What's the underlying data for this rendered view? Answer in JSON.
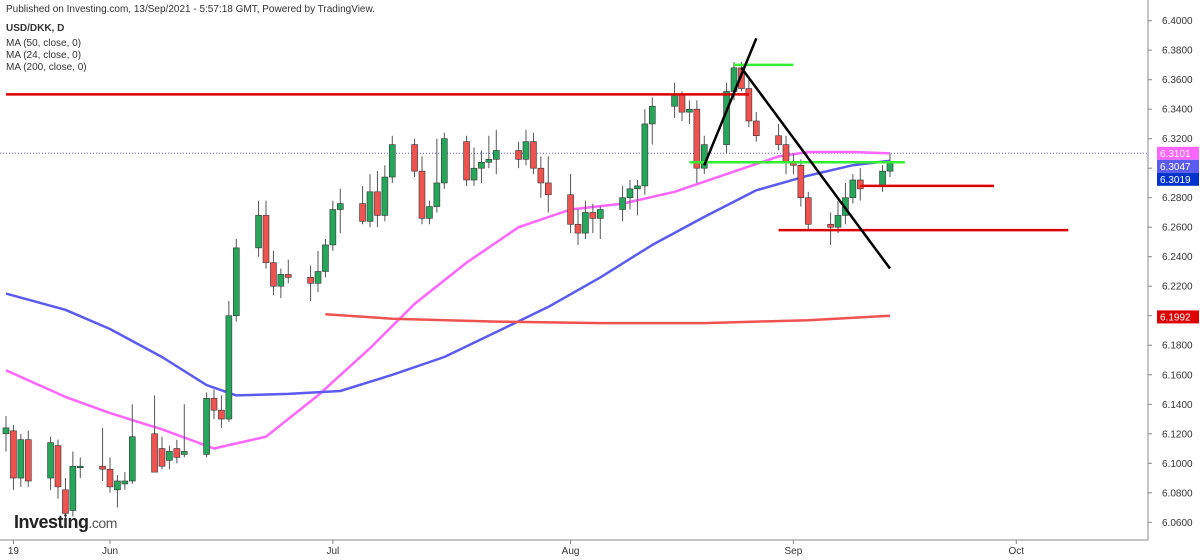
{
  "header": {
    "published": "Published on Investing.com, 13/Sep/2021 - 5:57:18 GMT, Powered by TradingView.",
    "symbol": "USD/DKK, D",
    "ma_labels": [
      "MA (50, close, 0)",
      "MA (24, close, 0)",
      "MA (200, close, 0)"
    ]
  },
  "logo": {
    "main": "Investing",
    "suffix": ".com"
  },
  "colors": {
    "up": "#26a65b",
    "down": "#ef5350",
    "ma24": "#ff66ff",
    "ma50": "#5b5bef",
    "ma200": "#ef5350",
    "resistance": "#dd0000",
    "support_green": "#33ee33",
    "trendline": "#000000",
    "last_price": "#5b5bef"
  },
  "chart_data": {
    "type": "candlestick",
    "xlabel": "",
    "ylabel": "",
    "ylim": [
      6.048,
      6.414
    ],
    "y_ticks": [
      "6.0600",
      "6.0800",
      "6.1000",
      "6.1200",
      "6.1400",
      "6.1600",
      "6.1800",
      "6.2000",
      "6.2200",
      "6.2400",
      "6.2600",
      "6.2800",
      "6.3000",
      "6.3200",
      "6.3400",
      "6.3600",
      "6.3800",
      "6.4000"
    ],
    "x_ticks": [
      {
        "label": "19",
        "date": "2021-05-19"
      },
      {
        "label": "Jun",
        "date": "2021-06-01"
      },
      {
        "label": "Jul",
        "date": "2021-07-01"
      },
      {
        "label": "Aug",
        "date": "2021-08-02"
      },
      {
        "label": "Sep",
        "date": "2021-09-01"
      },
      {
        "label": "Oct",
        "date": "2021-10-01"
      }
    ],
    "x_range": [
      "2021-05-18",
      "2021-10-12"
    ],
    "candles": [
      {
        "date": "2021-05-18",
        "o": 6.12,
        "h": 6.132,
        "l": 6.108,
        "c": 6.124
      },
      {
        "date": "2021-05-19",
        "o": 6.122,
        "h": 6.126,
        "l": 6.082,
        "c": 6.09
      },
      {
        "date": "2021-05-20",
        "o": 6.09,
        "h": 6.12,
        "l": 6.084,
        "c": 6.116
      },
      {
        "date": "2021-05-21",
        "o": 6.116,
        "h": 6.122,
        "l": 6.084,
        "c": 6.088
      },
      {
        "date": "2021-05-24",
        "o": 6.09,
        "h": 6.118,
        "l": 6.082,
        "c": 6.114
      },
      {
        "date": "2021-05-25",
        "o": 6.112,
        "h": 6.116,
        "l": 6.076,
        "c": 6.084
      },
      {
        "date": "2021-05-26",
        "o": 6.082,
        "h": 6.09,
        "l": 6.062,
        "c": 6.066
      },
      {
        "date": "2021-05-27",
        "o": 6.068,
        "h": 6.108,
        "l": 6.064,
        "c": 6.098
      },
      {
        "date": "2021-05-28",
        "o": 6.098,
        "h": 6.104,
        "l": 6.09,
        "c": 6.098
      },
      {
        "date": "2021-05-31",
        "o": 6.098,
        "h": 6.124,
        "l": 6.088,
        "c": 6.096
      },
      {
        "date": "2021-06-01",
        "o": 6.096,
        "h": 6.104,
        "l": 6.08,
        "c": 6.084
      },
      {
        "date": "2021-06-02",
        "o": 6.082,
        "h": 6.092,
        "l": 6.07,
        "c": 6.088
      },
      {
        "date": "2021-06-03",
        "o": 6.086,
        "h": 6.094,
        "l": 6.082,
        "c": 6.088
      },
      {
        "date": "2021-06-04",
        "o": 6.088,
        "h": 6.14,
        "l": 6.086,
        "c": 6.118
      },
      {
        "date": "2021-06-07",
        "o": 6.12,
        "h": 6.146,
        "l": 6.096,
        "c": 6.094
      },
      {
        "date": "2021-06-08",
        "o": 6.11,
        "h": 6.118,
        "l": 6.096,
        "c": 6.098
      },
      {
        "date": "2021-06-09",
        "o": 6.102,
        "h": 6.112,
        "l": 6.096,
        "c": 6.108
      },
      {
        "date": "2021-06-10",
        "o": 6.11,
        "h": 6.116,
        "l": 6.1,
        "c": 6.104
      },
      {
        "date": "2021-06-11",
        "o": 6.106,
        "h": 6.14,
        "l": 6.104,
        "c": 6.108
      },
      {
        "date": "2021-06-14",
        "o": 6.106,
        "h": 6.148,
        "l": 6.104,
        "c": 6.144
      },
      {
        "date": "2021-06-15",
        "o": 6.144,
        "h": 6.15,
        "l": 6.13,
        "c": 6.136
      },
      {
        "date": "2021-06-16",
        "o": 6.136,
        "h": 6.146,
        "l": 6.124,
        "c": 6.13
      },
      {
        "date": "2021-06-17",
        "o": 6.13,
        "h": 6.21,
        "l": 6.128,
        "c": 6.2
      },
      {
        "date": "2021-06-18",
        "o": 6.2,
        "h": 6.252,
        "l": 6.196,
        "c": 6.246
      },
      {
        "date": "2021-06-21",
        "o": 6.246,
        "h": 6.278,
        "l": 6.24,
        "c": 6.268
      },
      {
        "date": "2021-06-22",
        "o": 6.268,
        "h": 6.278,
        "l": 6.232,
        "c": 6.236
      },
      {
        "date": "2021-06-23",
        "o": 6.236,
        "h": 6.244,
        "l": 6.214,
        "c": 6.22
      },
      {
        "date": "2021-06-24",
        "o": 6.22,
        "h": 6.232,
        "l": 6.212,
        "c": 6.228
      },
      {
        "date": "2021-06-25",
        "o": 6.228,
        "h": 6.238,
        "l": 6.222,
        "c": 6.226
      },
      {
        "date": "2021-06-28",
        "o": 6.226,
        "h": 6.234,
        "l": 6.21,
        "c": 6.222
      },
      {
        "date": "2021-06-29",
        "o": 6.222,
        "h": 6.244,
        "l": 6.216,
        "c": 6.23
      },
      {
        "date": "2021-06-30",
        "o": 6.23,
        "h": 6.252,
        "l": 6.226,
        "c": 6.248
      },
      {
        "date": "2021-07-01",
        "o": 6.248,
        "h": 6.278,
        "l": 6.244,
        "c": 6.272
      },
      {
        "date": "2021-07-02",
        "o": 6.272,
        "h": 6.286,
        "l": 6.256,
        "c": 6.276
      },
      {
        "date": "2021-07-05",
        "o": 6.276,
        "h": 6.288,
        "l": 6.262,
        "c": 6.264
      },
      {
        "date": "2021-07-06",
        "o": 6.264,
        "h": 6.296,
        "l": 6.26,
        "c": 6.284
      },
      {
        "date": "2021-07-07",
        "o": 6.284,
        "h": 6.298,
        "l": 6.26,
        "c": 6.268
      },
      {
        "date": "2021-07-08",
        "o": 6.268,
        "h": 6.302,
        "l": 6.264,
        "c": 6.294
      },
      {
        "date": "2021-07-09",
        "o": 6.294,
        "h": 6.322,
        "l": 6.29,
        "c": 6.316
      },
      {
        "date": "2021-07-12",
        "o": 6.316,
        "h": 6.32,
        "l": 6.294,
        "c": 6.298
      },
      {
        "date": "2021-07-13",
        "o": 6.298,
        "h": 6.308,
        "l": 6.262,
        "c": 6.266
      },
      {
        "date": "2021-07-14",
        "o": 6.266,
        "h": 6.278,
        "l": 6.262,
        "c": 6.274
      },
      {
        "date": "2021-07-15",
        "o": 6.274,
        "h": 6.32,
        "l": 6.27,
        "c": 6.29
      },
      {
        "date": "2021-07-16",
        "o": 6.29,
        "h": 6.324,
        "l": 6.286,
        "c": 6.32
      },
      {
        "date": "2021-07-19",
        "o": 6.318,
        "h": 6.322,
        "l": 6.288,
        "c": 6.292
      },
      {
        "date": "2021-07-20",
        "o": 6.292,
        "h": 6.314,
        "l": 6.288,
        "c": 6.3
      },
      {
        "date": "2021-07-21",
        "o": 6.3,
        "h": 6.312,
        "l": 6.29,
        "c": 6.304
      },
      {
        "date": "2021-07-22",
        "o": 6.304,
        "h": 6.322,
        "l": 6.3,
        "c": 6.306
      },
      {
        "date": "2021-07-23",
        "o": 6.306,
        "h": 6.326,
        "l": 6.296,
        "c": 6.312
      },
      {
        "date": "2021-07-26",
        "o": 6.312,
        "h": 6.318,
        "l": 6.3,
        "c": 6.306
      },
      {
        "date": "2021-07-27",
        "o": 6.306,
        "h": 6.326,
        "l": 6.302,
        "c": 6.318
      },
      {
        "date": "2021-07-28",
        "o": 6.318,
        "h": 6.324,
        "l": 6.296,
        "c": 6.3
      },
      {
        "date": "2021-07-29",
        "o": 6.3,
        "h": 6.308,
        "l": 6.28,
        "c": 6.29
      },
      {
        "date": "2021-07-30",
        "o": 6.29,
        "h": 6.308,
        "l": 6.27,
        "c": 6.282
      },
      {
        "date": "2021-08-02",
        "o": 6.282,
        "h": 6.296,
        "l": 6.256,
        "c": 6.262
      },
      {
        "date": "2021-08-03",
        "o": 6.262,
        "h": 6.272,
        "l": 6.248,
        "c": 6.256
      },
      {
        "date": "2021-08-04",
        "o": 6.256,
        "h": 6.278,
        "l": 6.252,
        "c": 6.27
      },
      {
        "date": "2021-08-05",
        "o": 6.27,
        "h": 6.276,
        "l": 6.256,
        "c": 6.266
      },
      {
        "date": "2021-08-06",
        "o": 6.266,
        "h": 6.274,
        "l": 6.252,
        "c": 6.272
      },
      {
        "date": "2021-08-09",
        "o": 6.272,
        "h": 6.288,
        "l": 6.264,
        "c": 6.28
      },
      {
        "date": "2021-08-10",
        "o": 6.28,
        "h": 6.292,
        "l": 6.272,
        "c": 6.286
      },
      {
        "date": "2021-08-11",
        "o": 6.286,
        "h": 6.292,
        "l": 6.268,
        "c": 6.288
      },
      {
        "date": "2021-08-12",
        "o": 6.288,
        "h": 6.34,
        "l": 6.282,
        "c": 6.33
      },
      {
        "date": "2021-08-13",
        "o": 6.33,
        "h": 6.348,
        "l": 6.316,
        "c": 6.342
      },
      {
        "date": "2021-08-16",
        "o": 6.342,
        "h": 6.358,
        "l": 6.334,
        "c": 6.35
      },
      {
        "date": "2021-08-17",
        "o": 6.35,
        "h": 6.352,
        "l": 6.332,
        "c": 6.338
      },
      {
        "date": "2021-08-18",
        "o": 6.338,
        "h": 6.346,
        "l": 6.33,
        "c": 6.34
      },
      {
        "date": "2021-08-19",
        "o": 6.34,
        "h": 6.346,
        "l": 6.29,
        "c": 6.3
      },
      {
        "date": "2021-08-20",
        "o": 6.3,
        "h": 6.322,
        "l": 6.296,
        "c": 6.316
      },
      {
        "date": "2021-08-23",
        "o": 6.316,
        "h": 6.358,
        "l": 6.31,
        "c": 6.352
      },
      {
        "date": "2021-08-24",
        "o": 6.352,
        "h": 6.372,
        "l": 6.346,
        "c": 6.368
      },
      {
        "date": "2021-08-25",
        "o": 6.368,
        "h": 6.372,
        "l": 6.352,
        "c": 6.354
      },
      {
        "date": "2021-08-26",
        "o": 6.354,
        "h": 6.36,
        "l": 6.328,
        "c": 6.332
      },
      {
        "date": "2021-08-27",
        "o": 6.332,
        "h": 6.338,
        "l": 6.318,
        "c": 6.322
      },
      {
        "date": "2021-08-30",
        "o": 6.322,
        "h": 6.33,
        "l": 6.312,
        "c": 6.316
      },
      {
        "date": "2021-08-31",
        "o": 6.316,
        "h": 6.322,
        "l": 6.296,
        "c": 6.304
      },
      {
        "date": "2021-09-01",
        "o": 6.304,
        "h": 6.31,
        "l": 6.296,
        "c": 6.302
      },
      {
        "date": "2021-09-02",
        "o": 6.302,
        "h": 6.306,
        "l": 6.274,
        "c": 6.28
      },
      {
        "date": "2021-09-03",
        "o": 6.28,
        "h": 6.284,
        "l": 6.258,
        "c": 6.262
      },
      {
        "date": "2021-09-06",
        "o": 6.262,
        "h": 6.27,
        "l": 6.248,
        "c": 6.26
      },
      {
        "date": "2021-09-07",
        "o": 6.26,
        "h": 6.278,
        "l": 6.256,
        "c": 6.268
      },
      {
        "date": "2021-09-08",
        "o": 6.268,
        "h": 6.29,
        "l": 6.262,
        "c": 6.28
      },
      {
        "date": "2021-09-09",
        "o": 6.28,
        "h": 6.296,
        "l": 6.276,
        "c": 6.292
      },
      {
        "date": "2021-09-10",
        "o": 6.292,
        "h": 6.3,
        "l": 6.278,
        "c": 6.286
      },
      {
        "date": "2021-09-13",
        "o": 6.288,
        "h": 6.302,
        "l": 6.284,
        "c": 6.298
      },
      {
        "date": "2021-09-14",
        "o": 6.298,
        "h": 6.31,
        "l": 6.294,
        "c": 6.304
      }
    ],
    "series": [
      {
        "name": "MA (24, close, 0)",
        "points": [
          [
            "2021-05-18",
            6.163
          ],
          [
            "2021-05-26",
            6.145
          ],
          [
            "2021-06-01",
            6.134
          ],
          [
            "2021-06-08",
            6.123
          ],
          [
            "2021-06-15",
            6.11
          ],
          [
            "2021-06-22",
            6.118
          ],
          [
            "2021-06-29",
            6.146
          ],
          [
            "2021-07-06",
            6.178
          ],
          [
            "2021-07-12",
            6.208
          ],
          [
            "2021-07-19",
            6.236
          ],
          [
            "2021-07-26",
            6.26
          ],
          [
            "2021-08-02",
            6.272
          ],
          [
            "2021-08-09",
            6.276
          ],
          [
            "2021-08-16",
            6.284
          ],
          [
            "2021-08-23",
            6.296
          ],
          [
            "2021-08-30",
            6.308
          ],
          [
            "2021-09-03",
            6.311
          ],
          [
            "2021-09-09",
            6.311
          ],
          [
            "2021-09-14",
            6.31
          ]
        ]
      },
      {
        "name": "MA (50, close, 0)",
        "points": [
          [
            "2021-05-18",
            6.215
          ],
          [
            "2021-05-26",
            6.204
          ],
          [
            "2021-06-01",
            6.191
          ],
          [
            "2021-06-08",
            6.172
          ],
          [
            "2021-06-14",
            6.153
          ],
          [
            "2021-06-18",
            6.146
          ],
          [
            "2021-06-25",
            6.147
          ],
          [
            "2021-07-02",
            6.149
          ],
          [
            "2021-07-09",
            6.16
          ],
          [
            "2021-07-16",
            6.172
          ],
          [
            "2021-07-23",
            6.189
          ],
          [
            "2021-07-30",
            6.206
          ],
          [
            "2021-08-06",
            6.226
          ],
          [
            "2021-08-13",
            6.248
          ],
          [
            "2021-08-20",
            6.267
          ],
          [
            "2021-08-27",
            6.285
          ],
          [
            "2021-09-03",
            6.295
          ],
          [
            "2021-09-09",
            6.302
          ],
          [
            "2021-09-14",
            6.305
          ]
        ]
      },
      {
        "name": "MA (200, close, 0)",
        "points": [
          [
            "2021-06-30",
            6.201
          ],
          [
            "2021-07-09",
            6.198
          ],
          [
            "2021-07-23",
            6.196
          ],
          [
            "2021-08-06",
            6.195
          ],
          [
            "2021-08-20",
            6.195
          ],
          [
            "2021-08-27",
            6.196
          ],
          [
            "2021-09-03",
            6.197
          ],
          [
            "2021-09-14",
            6.2
          ]
        ]
      }
    ],
    "annotations": {
      "horizontal_lines": [
        {
          "color": "red",
          "y": 6.35,
          "from": "2021-05-18",
          "to": "2021-08-26"
        },
        {
          "color": "red",
          "y": 6.288,
          "from": "2021-09-10",
          "to": "2021-09-28"
        },
        {
          "color": "red",
          "y": 6.258,
          "from": "2021-08-30",
          "to": "2021-10-08"
        },
        {
          "color": "green",
          "y": 6.37,
          "from": "2021-08-24",
          "to": "2021-09-01"
        },
        {
          "color": "green",
          "y": 6.304,
          "from": "2021-08-18",
          "to": "2021-09-16"
        }
      ],
      "trend_lines": [
        {
          "x1": "2021-08-20",
          "y1": 6.302,
          "x2": "2021-08-27",
          "y2": 6.388
        },
        {
          "x1": "2021-08-25",
          "y1": 6.368,
          "x2": "2021-09-14",
          "y2": 6.232
        }
      ],
      "reference_line": {
        "y": 6.3101,
        "style": "dotted"
      }
    },
    "price_tags": [
      {
        "label": "6.3101",
        "y": 6.3101,
        "color": "#ff66ff"
      },
      {
        "label": "6.3047",
        "y": 6.3047,
        "color": "#5b5bef"
      },
      {
        "label": "6.3019",
        "y": 6.3019,
        "color": "#0033cc"
      },
      {
        "label": "6.1992",
        "y": 6.1992,
        "color": "#dd0000"
      }
    ],
    "grid": false,
    "legend": "top-left"
  }
}
